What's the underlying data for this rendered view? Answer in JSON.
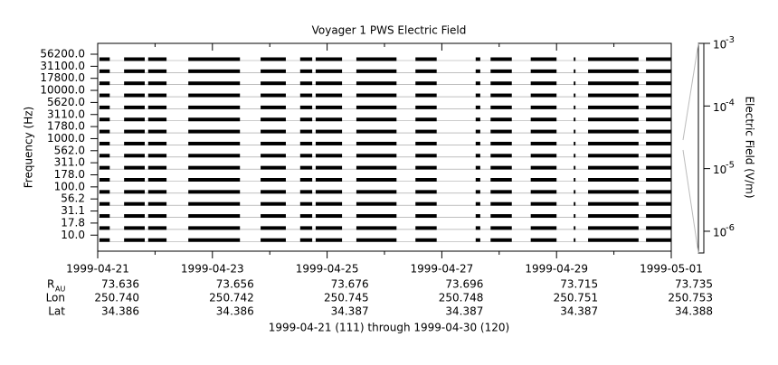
{
  "chart_data": {
    "type": "coverage",
    "title": "Voyager 1 PWS Electric Field",
    "ylabel": "Frequency (Hz)",
    "y2label": "Electric Field (V/m)",
    "footer": "1999-04-21 (111) through 1999-04-30 (120)",
    "categories": [
      "56200.0",
      "31100.0",
      "17800.0",
      "10000.0",
      "5620.0",
      "3110.0",
      "1780.0",
      "1000.0",
      "562.0",
      "311.0",
      "178.0",
      "100.0",
      "56.2",
      "31.1",
      "17.8",
      "10.0"
    ],
    "color": "#000000",
    "segments": [
      [
        0.03,
        0.21
      ],
      [
        0.46,
        0.82
      ],
      [
        0.88,
        1.2
      ],
      [
        1.58,
        2.48
      ],
      [
        2.84,
        3.28
      ],
      [
        3.53,
        3.74
      ],
      [
        3.8,
        4.26
      ],
      [
        4.51,
        5.21
      ],
      [
        5.54,
        5.91
      ],
      [
        6.59,
        6.67
      ],
      [
        6.85,
        7.22
      ],
      [
        7.55,
        8.0
      ],
      [
        8.3,
        8.33
      ],
      [
        8.55,
        9.43
      ],
      [
        9.56,
        10.0
      ]
    ],
    "xlim": [
      0,
      10
    ],
    "xticks": [
      {
        "value": 0,
        "label": "1999-04-21"
      },
      {
        "value": 2,
        "label": "1999-04-23"
      },
      {
        "value": 4,
        "label": "1999-04-25"
      },
      {
        "value": 6,
        "label": "1999-04-27"
      },
      {
        "value": 8,
        "label": "1999-04-29"
      },
      {
        "value": 10,
        "label": "1999-05-01"
      }
    ],
    "xminorticks": [
      1,
      3,
      5,
      7,
      9
    ],
    "y2lim": [
      4.5e-07,
      0.001
    ],
    "y2log": true,
    "y2ticks": [
      {
        "value": 0.001,
        "label": "10",
        "exponent": "-3"
      },
      {
        "value": 0.0001,
        "label": "10",
        "exponent": "-4"
      },
      {
        "value": 1e-05,
        "label": "10",
        "exponent": "-5"
      },
      {
        "value": 1e-06,
        "label": "10",
        "exponent": "-6"
      }
    ],
    "ephemeris": [
      {
        "label": "R",
        "sub": "AU",
        "values": [
          "73.636",
          "73.656",
          "73.676",
          "73.696",
          "73.715",
          "73.735"
        ]
      },
      {
        "label": "Lon",
        "values": [
          "250.740",
          "250.742",
          "250.745",
          "250.748",
          "250.751",
          "250.753"
        ]
      },
      {
        "label": "Lat",
        "values": [
          "34.386",
          "34.386",
          "34.387",
          "34.387",
          "34.387",
          "34.388"
        ]
      }
    ]
  }
}
